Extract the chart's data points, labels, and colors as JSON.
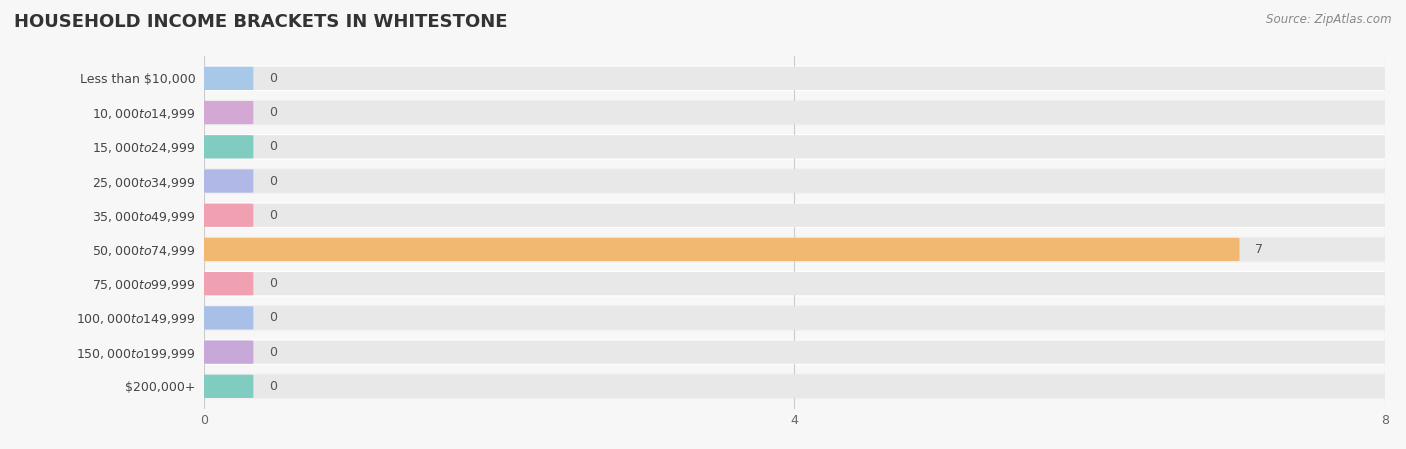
{
  "title": "HOUSEHOLD INCOME BRACKETS IN WHITESTONE",
  "source": "Source: ZipAtlas.com",
  "categories": [
    "Less than $10,000",
    "$10,000 to $14,999",
    "$15,000 to $24,999",
    "$25,000 to $34,999",
    "$35,000 to $49,999",
    "$50,000 to $74,999",
    "$75,000 to $99,999",
    "$100,000 to $149,999",
    "$150,000 to $199,999",
    "$200,000+"
  ],
  "values": [
    0,
    0,
    0,
    0,
    0,
    7,
    0,
    0,
    0,
    0
  ],
  "bar_colors": [
    "#a8c8e8",
    "#d4a8d4",
    "#80ccc0",
    "#b0b8e8",
    "#f0a0b0",
    "#f0b870",
    "#f0a0b0",
    "#a8c0e8",
    "#c8a8d8",
    "#80ccc0"
  ],
  "background_color": "#f7f7f7",
  "bar_background_color": "#e8e8e8",
  "row_alt_color": "#f0f0f0",
  "xlim": [
    0,
    8
  ],
  "xticks": [
    0,
    4,
    8
  ],
  "title_fontsize": 13,
  "label_fontsize": 9,
  "tick_fontsize": 9,
  "source_fontsize": 8.5
}
